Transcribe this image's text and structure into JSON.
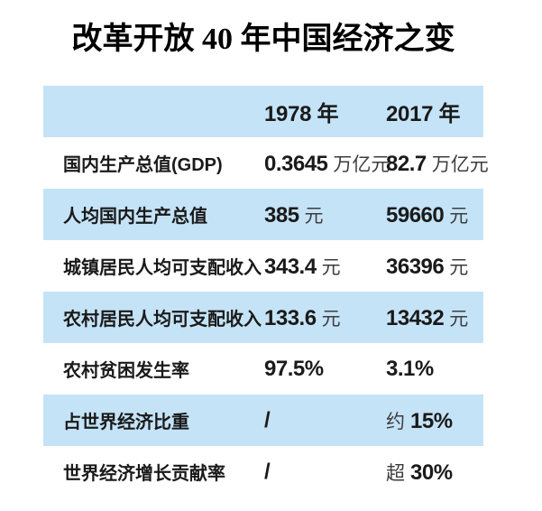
{
  "title": "改革开放 40 年中国经济之变",
  "colors": {
    "row_highlight": "#C5E3F7",
    "background": "#ffffff",
    "text": "#1a1a1a"
  },
  "table": {
    "header": {
      "col_label": "",
      "col_1978": "1978 年",
      "col_2017": "2017 年"
    },
    "rows": [
      {
        "label": "国内生产总值(GDP)",
        "v1978": {
          "num": "0.3645",
          "unit": "万亿元"
        },
        "v2017": {
          "num": "82.7",
          "unit": "万亿元"
        }
      },
      {
        "label": "人均国内生产总值",
        "v1978": {
          "num": "385",
          "unit": "元"
        },
        "v2017": {
          "num": "59660",
          "unit": "元"
        }
      },
      {
        "label": "城镇居民人均可支配收入",
        "v1978": {
          "num": "343.4",
          "unit": "元"
        },
        "v2017": {
          "num": "36396",
          "unit": "元"
        }
      },
      {
        "label": "农村居民人均可支配收入",
        "v1978": {
          "num": "133.6",
          "unit": "元"
        },
        "v2017": {
          "num": "13432",
          "unit": "元"
        }
      },
      {
        "label": "农村贫困发生率",
        "v1978": {
          "num": "97.5%"
        },
        "v2017": {
          "num": "3.1%"
        }
      },
      {
        "label": "占世界经济比重",
        "v1978": {
          "num": "/"
        },
        "v2017": {
          "prefix": "约",
          "num": "15%"
        }
      },
      {
        "label": "世界经济增长贡献率",
        "v1978": {
          "num": "/"
        },
        "v2017": {
          "prefix": "超",
          "num": "30%"
        }
      }
    ]
  },
  "chart_data": {
    "type": "table",
    "title": "改革开放 40 年中国经济之变",
    "columns": [
      "",
      "1978 年",
      "2017 年"
    ],
    "rows": [
      [
        "国内生产总值(GDP)",
        "0.3645 万亿元",
        "82.7 万亿元"
      ],
      [
        "人均国内生产总值",
        "385 元",
        "59660 元"
      ],
      [
        "城镇居民人均可支配收入",
        "343.4 元",
        "36396 元"
      ],
      [
        "农村居民人均可支配收入",
        "133.6 元",
        "13432 元"
      ],
      [
        "农村贫困发生率",
        "97.5%",
        "3.1%"
      ],
      [
        "占世界经济比重",
        "/",
        "约 15%"
      ],
      [
        "世界经济增长贡献率",
        "/",
        "超 30%"
      ]
    ],
    "layout_hints": {
      "striped": true,
      "stripe_color": "#C5E3F7",
      "first_stripe": "header"
    }
  }
}
